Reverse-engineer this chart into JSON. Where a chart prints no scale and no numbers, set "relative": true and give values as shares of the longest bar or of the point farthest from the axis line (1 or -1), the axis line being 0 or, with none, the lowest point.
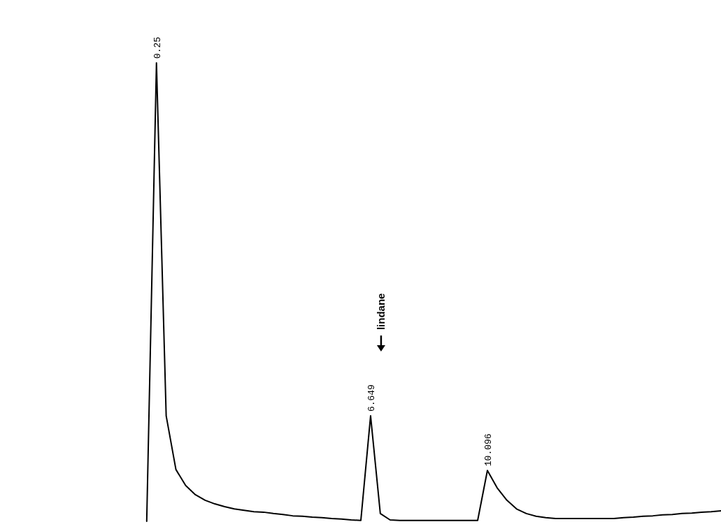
{
  "chart_data": {
    "type": "line",
    "relative": true,
    "color": "#000000",
    "categories": [
      null,
      null,
      null,
      null,
      null,
      null,
      null,
      null,
      null,
      null,
      null,
      null,
      null,
      null,
      null,
      null,
      null,
      null,
      null,
      null,
      null,
      null,
      null,
      null,
      null,
      null,
      null,
      null,
      null,
      null,
      null,
      null,
      null,
      null,
      null,
      null,
      null,
      null,
      null,
      null,
      null,
      null,
      null,
      null,
      null,
      null,
      null,
      null,
      null,
      null,
      null,
      null,
      null,
      null,
      null,
      null,
      null,
      null,
      null,
      null
    ],
    "values": [
      0,
      1,
      0.23,
      0.113,
      0.078,
      0.058,
      0.046,
      0.038,
      0.032,
      0.027,
      0.024,
      0.021,
      0.02,
      0.017,
      0.015,
      0.012,
      0.011,
      0.009,
      0.008,
      0.006,
      0.005,
      0.003,
      0.002,
      0.23,
      0.017,
      0.003,
      0.002,
      0.002,
      0.002,
      0.002,
      0.002,
      0.002,
      0.002,
      0.002,
      0.002,
      0.111,
      0.073,
      0.046,
      0.027,
      0.017,
      0.011,
      0.008,
      0.006,
      0.006,
      0.006,
      0.006,
      0.006,
      0.006,
      0.006,
      0.008,
      0.009,
      0.011,
      0.012,
      0.014,
      0.015,
      0.017,
      0.018,
      0.02,
      0.021,
      0.023
    ],
    "annotations": [
      "0.25",
      "6.649",
      {
        "text": "lindane"
      },
      "10.096"
    ]
  }
}
